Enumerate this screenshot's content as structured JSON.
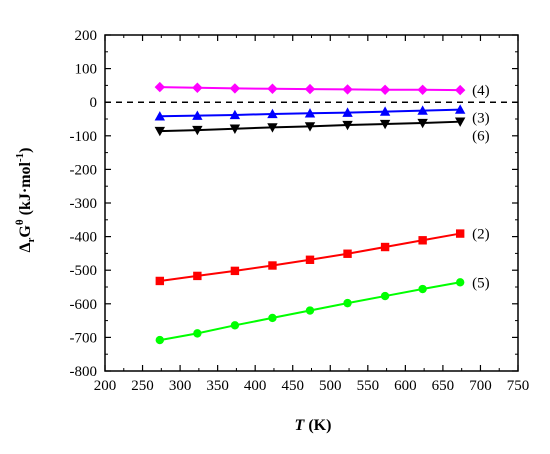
{
  "chart_data": {
    "type": "line",
    "xlabel": {
      "var": "T",
      "unit": " (K)"
    },
    "ylabel": {
      "main": "Δ",
      "sub": "r",
      "G": "G",
      "sup": "θ",
      "unit": " (kJ·mol",
      "unit_sup": "-1",
      "close": ")"
    },
    "xlim": [
      200,
      750
    ],
    "ylim": [
      -800,
      200
    ],
    "x_ticks": [
      200,
      250,
      300,
      350,
      400,
      450,
      500,
      550,
      600,
      650,
      700,
      750
    ],
    "y_ticks": [
      200,
      100,
      0,
      -100,
      -200,
      -300,
      -400,
      -500,
      -600,
      -700,
      -800
    ],
    "x_tick_labels": [
      "200",
      "250",
      "300",
      "350",
      "400",
      "450",
      "500",
      "550",
      "600",
      "650",
      "700",
      "750"
    ],
    "y_tick_labels": [
      "200",
      "100",
      "0",
      "-100",
      "-200",
      "-300",
      "-400",
      "-500",
      "-600",
      "-700",
      "-800"
    ],
    "grid": false,
    "reference_line": {
      "y": 0,
      "style": "dashed"
    },
    "x": [
      273,
      323,
      373,
      423,
      473,
      523,
      573,
      623,
      673
    ],
    "series": [
      {
        "name": "(4)",
        "color": "#ff00ff",
        "marker": "diamond",
        "values": [
          45,
          43,
          41,
          40,
          39,
          38,
          37,
          37,
          36
        ]
      },
      {
        "name": "(3)",
        "color": "#0000ff",
        "marker": "triangle-up",
        "values": [
          -42,
          -40,
          -38,
          -35,
          -33,
          -31,
          -28,
          -25,
          -22
        ]
      },
      {
        "name": "(6)",
        "color": "#000000",
        "marker": "triangle-down",
        "values": [
          -86,
          -83,
          -79,
          -75,
          -72,
          -68,
          -65,
          -62,
          -58
        ]
      },
      {
        "name": "(2)",
        "color": "#ff0000",
        "marker": "square",
        "values": [
          -532,
          -517,
          -502,
          -486,
          -469,
          -451,
          -431,
          -411,
          -391
        ]
      },
      {
        "name": "(5)",
        "color": "#00ff00",
        "marker": "circle",
        "values": [
          -708,
          -688,
          -664,
          -642,
          -620,
          -598,
          -577,
          -556,
          -536
        ]
      }
    ]
  }
}
